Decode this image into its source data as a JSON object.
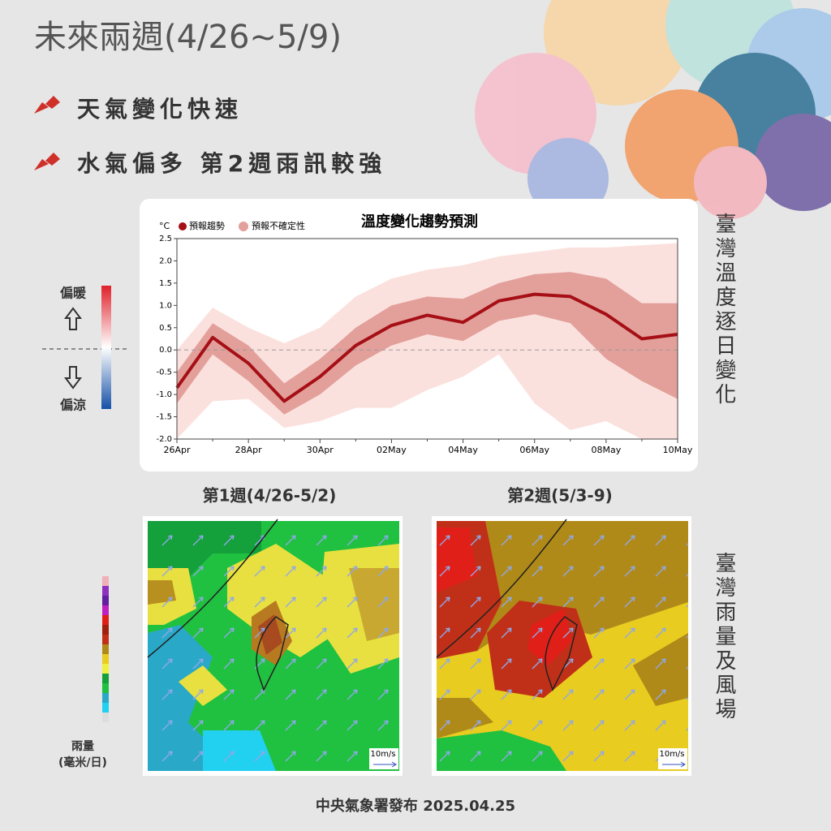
{
  "header": {
    "title": "未來兩週(4/26~5/9)",
    "bullets": [
      "天氣變化快速",
      "水氣偏多  第2週雨訊較強"
    ]
  },
  "chart_data": {
    "type": "line",
    "title": "溫度變化趨勢預測",
    "y_unit": "°C",
    "categories": [
      "26Apr",
      null,
      "28Apr",
      null,
      "30Apr",
      null,
      "02May",
      null,
      "04May",
      null,
      "06May",
      null,
      "08May",
      null,
      "10May"
    ],
    "series": [
      {
        "name": "預報趨勢",
        "color": "#a50f15",
        "values": [
          -0.85,
          0.28,
          -0.3,
          -1.15,
          -0.6,
          0.1,
          0.55,
          0.78,
          0.62,
          1.1,
          1.25,
          1.2,
          0.8,
          0.25,
          0.35
        ]
      }
    ],
    "uncertainty": {
      "name": "預報不確定性",
      "color": "#e3a09b",
      "outer_color": "#fbe1de",
      "inner_lower": [
        -1.2,
        -0.1,
        -0.7,
        -1.45,
        -1.0,
        -0.35,
        0.1,
        0.35,
        0.2,
        0.65,
        0.8,
        0.6,
        -0.2,
        -0.7,
        -1.1
      ],
      "inner_upper": [
        -0.5,
        0.6,
        0.1,
        -0.75,
        -0.2,
        0.5,
        1.0,
        1.2,
        1.15,
        1.5,
        1.7,
        1.75,
        1.6,
        1.05,
        1.05
      ],
      "outer_lower": [
        -2.0,
        -1.15,
        -1.1,
        -1.75,
        -1.6,
        -1.3,
        -1.3,
        -0.9,
        -0.6,
        -0.1,
        -1.2,
        -1.8,
        -1.6,
        -2.0,
        -2.0
      ],
      "outer_upper": [
        0.0,
        0.95,
        0.5,
        0.15,
        0.5,
        1.2,
        1.6,
        1.8,
        1.9,
        2.1,
        2.2,
        2.3,
        2.3,
        2.35,
        2.4
      ]
    },
    "ylim": [
      -2.0,
      2.5
    ],
    "yticks": [
      {
        "value": -2,
        "label": "-2.0"
      },
      {
        "value": -1.5,
        "label": "-1.5"
      },
      {
        "value": -1,
        "label": "-1.0"
      },
      {
        "value": -0.5,
        "label": "-0.5"
      },
      {
        "value": 0,
        "label": "0.0"
      },
      {
        "value": 0.5,
        "label": "0.5"
      },
      {
        "value": 1,
        "label": "1.0"
      },
      {
        "value": 1.5,
        "label": "1.5"
      },
      {
        "value": 2,
        "label": "2.0"
      },
      {
        "value": 2.5,
        "label": "2.5"
      }
    ],
    "side_labels": {
      "warm": "偏暖",
      "cool": "偏涼"
    }
  },
  "side_titles": {
    "temperature": "臺灣溫度逐日變化",
    "rain": "臺灣雨量及風場"
  },
  "maps": [
    {
      "title": "第1週(4/26-5/2)",
      "scale": "10m/s"
    },
    {
      "title": "第2週(5/3-9)",
      "scale": "10m/s"
    }
  ],
  "rain_legend": {
    "label": "雨量",
    "unit": "(毫米/日)"
  },
  "footer": "中央氣象署發布 2025.04.25"
}
